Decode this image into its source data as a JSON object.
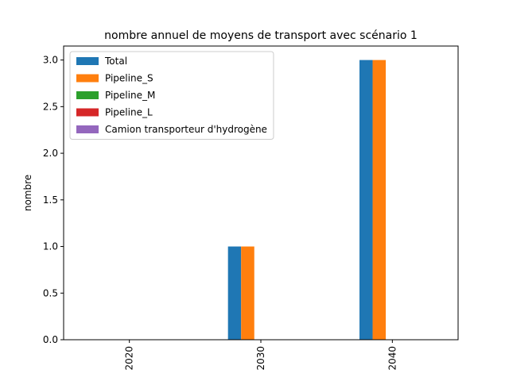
{
  "chart_data": {
    "type": "bar",
    "title": "nombre annuel de moyens de transport avec scénario 1",
    "y_label": "nombre",
    "categories": [
      "2020",
      "2030",
      "2040"
    ],
    "series": [
      {
        "name": "Total",
        "color": "#1f77b4",
        "values": [
          0,
          1,
          3
        ]
      },
      {
        "name": "Pipeline_S",
        "color": "#ff7f0e",
        "values": [
          0,
          1,
          3
        ]
      },
      {
        "name": "Pipeline_M",
        "color": "#2ca02c",
        "values": [
          0,
          0,
          0
        ]
      },
      {
        "name": "Pipeline_L",
        "color": "#d62728",
        "values": [
          0,
          0,
          0
        ]
      },
      {
        "name": "Camion transporteur d'hydrogène",
        "color": "#9467bd",
        "values": [
          0,
          0,
          0
        ]
      }
    ],
    "ylim": [
      0,
      3.15
    ],
    "yticks": [
      {
        "value": 0,
        "label": "0.0"
      },
      {
        "value": 0.5,
        "label": "0.5"
      },
      {
        "value": 1,
        "label": "1.0"
      },
      {
        "value": 1.5,
        "label": "1.5"
      },
      {
        "value": 2,
        "label": "2.0"
      },
      {
        "value": 2.5,
        "label": "2.5"
      },
      {
        "value": 3,
        "label": "3.0"
      }
    ],
    "legend": "upper left"
  }
}
